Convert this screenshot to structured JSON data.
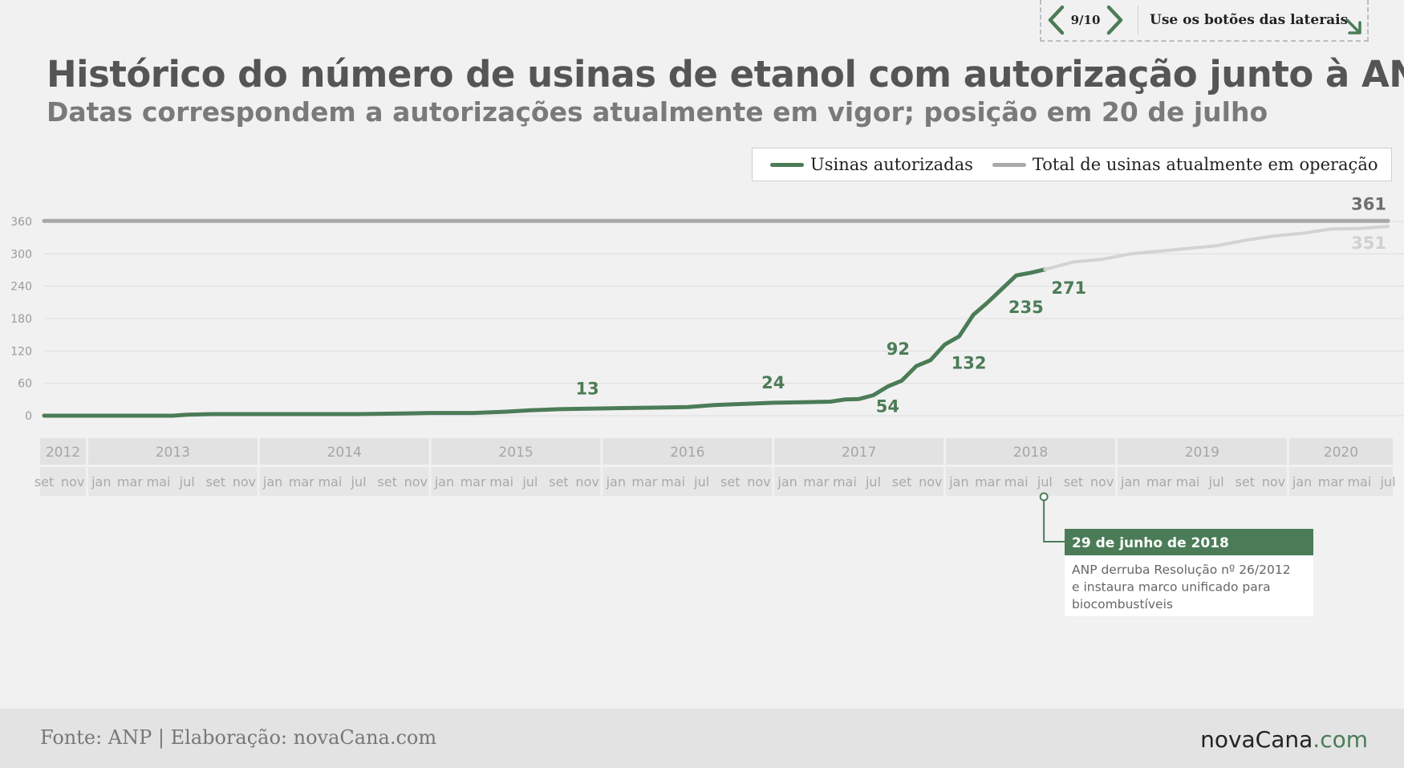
{
  "nav": {
    "counter": "9/10",
    "hint": "Use os botões das laterais"
  },
  "title": "Histórico do número de usinas de etanol com autorização junto à ANP",
  "subtitle": "Datas correspondem a autorizações atualmente em vigor; posição em 20 de julho",
  "legend": {
    "items": [
      {
        "label": "Usinas autorizadas",
        "color": "#4b7c57"
      },
      {
        "label": "Total de usinas atualmente em operação",
        "color": "#a9a9a9"
      }
    ]
  },
  "footer": {
    "source": "Fonte: ANP | Elaboração: novaCana.com",
    "brand_main": "novaCana",
    "brand_suffix": ".com"
  },
  "chart_data": {
    "type": "line",
    "ylim": [
      0,
      360
    ],
    "yticks": [
      0,
      60,
      120,
      180,
      240,
      300,
      360
    ],
    "grid": true,
    "legend_position": "top-right",
    "x_start": "2012-09",
    "x_end": "2020-07",
    "years": [
      {
        "label": "2012",
        "months": [
          "set",
          "nov"
        ]
      },
      {
        "label": "2013",
        "months": [
          "jan",
          "mar",
          "mai",
          "jul",
          "set",
          "nov"
        ]
      },
      {
        "label": "2014",
        "months": [
          "jan",
          "mar",
          "mai",
          "jul",
          "set",
          "nov"
        ]
      },
      {
        "label": "2015",
        "months": [
          "jan",
          "mar",
          "mai",
          "jul",
          "set",
          "nov"
        ]
      },
      {
        "label": "2016",
        "months": [
          "jan",
          "mar",
          "mai",
          "jul",
          "set",
          "nov"
        ]
      },
      {
        "label": "2017",
        "months": [
          "jan",
          "mar",
          "mai",
          "jul",
          "set",
          "nov"
        ]
      },
      {
        "label": "2018",
        "months": [
          "jan",
          "mar",
          "mai",
          "jul",
          "set",
          "nov"
        ]
      },
      {
        "label": "2019",
        "months": [
          "jan",
          "mar",
          "mai",
          "jul",
          "set",
          "nov"
        ]
      },
      {
        "label": "2020",
        "months": [
          "jan",
          "mar",
          "mai",
          "jul"
        ]
      }
    ],
    "series": [
      {
        "name": "Usinas autorizadas",
        "color": "#4b7c57",
        "points": [
          [
            "2012-09",
            0
          ],
          [
            "2013-01",
            0
          ],
          [
            "2013-06",
            0
          ],
          [
            "2013-07",
            2
          ],
          [
            "2013-09",
            3
          ],
          [
            "2014-01",
            3
          ],
          [
            "2014-07",
            3
          ],
          [
            "2014-10",
            4
          ],
          [
            "2014-12",
            5
          ],
          [
            "2015-03",
            5
          ],
          [
            "2015-05",
            7
          ],
          [
            "2015-07",
            10
          ],
          [
            "2015-09",
            12
          ],
          [
            "2015-11",
            13
          ],
          [
            "2016-01",
            14
          ],
          [
            "2016-04",
            15
          ],
          [
            "2016-06",
            16
          ],
          [
            "2016-08",
            20
          ],
          [
            "2016-10",
            22
          ],
          [
            "2016-12",
            24
          ],
          [
            "2017-02",
            25
          ],
          [
            "2017-04",
            26
          ],
          [
            "2017-05",
            30
          ],
          [
            "2017-06",
            31
          ],
          [
            "2017-07",
            38
          ],
          [
            "2017-08",
            54
          ],
          [
            "2017-09",
            65
          ],
          [
            "2017-10",
            92
          ],
          [
            "2017-11",
            103
          ],
          [
            "2017-12",
            132
          ],
          [
            "2018-01",
            147
          ],
          [
            "2018-02",
            187
          ],
          [
            "2018-03",
            210
          ],
          [
            "2018-04",
            235
          ],
          [
            "2018-05",
            260
          ],
          [
            "2018-06",
            265
          ],
          [
            "2018-07",
            271
          ]
        ]
      },
      {
        "name": "Usinas autorizadas (após 29/06/2018)",
        "color": "#d3d3d3",
        "points": [
          [
            "2018-07",
            271
          ],
          [
            "2018-09",
            285
          ],
          [
            "2018-11",
            290
          ],
          [
            "2019-01",
            300
          ],
          [
            "2019-03",
            305
          ],
          [
            "2019-05",
            310
          ],
          [
            "2019-07",
            315
          ],
          [
            "2019-09",
            325
          ],
          [
            "2019-11",
            333
          ],
          [
            "2020-01",
            338
          ],
          [
            "2020-03",
            346
          ],
          [
            "2020-05",
            347
          ],
          [
            "2020-07",
            351
          ]
        ]
      },
      {
        "name": "Total de usinas atualmente em operação",
        "color": "#a9a9a9",
        "points": [
          [
            "2012-09",
            361
          ],
          [
            "2020-07",
            361
          ]
        ]
      }
    ],
    "data_labels": [
      {
        "text": "13",
        "date": "2015-11",
        "value": 13,
        "pos": "above",
        "color": "#4b7c57"
      },
      {
        "text": "24",
        "date": "2016-12",
        "value": 24,
        "pos": "above",
        "color": "#4b7c57"
      },
      {
        "text": "54",
        "date": "2017-08",
        "value": 54,
        "pos": "below",
        "color": "#4b7c57"
      },
      {
        "text": "92",
        "date": "2017-10",
        "value": 92,
        "pos": "above-left",
        "color": "#4b7c57"
      },
      {
        "text": "132",
        "date": "2017-12",
        "value": 132,
        "pos": "below-right",
        "color": "#4b7c57"
      },
      {
        "text": "235",
        "date": "2018-04",
        "value": 235,
        "pos": "below-right",
        "color": "#4b7c57"
      },
      {
        "text": "271",
        "date": "2018-07",
        "value": 271,
        "pos": "below-right",
        "color": "#4b7c57"
      },
      {
        "text": "361",
        "date": "2020-07",
        "value": 361,
        "pos": "above-left",
        "color": "#6f6f6f"
      },
      {
        "text": "351",
        "date": "2020-07",
        "value": 351,
        "pos": "below-left",
        "color": "#d0d0d0"
      }
    ],
    "annotation": {
      "date": "2018-06-29",
      "title": "29 de junho de 2018",
      "text_lines": [
        "ANP derruba Resolução nº 26/2012",
        "e instaura marco unificado para",
        "biocombustíveis"
      ],
      "color": "#4b7c57"
    }
  }
}
